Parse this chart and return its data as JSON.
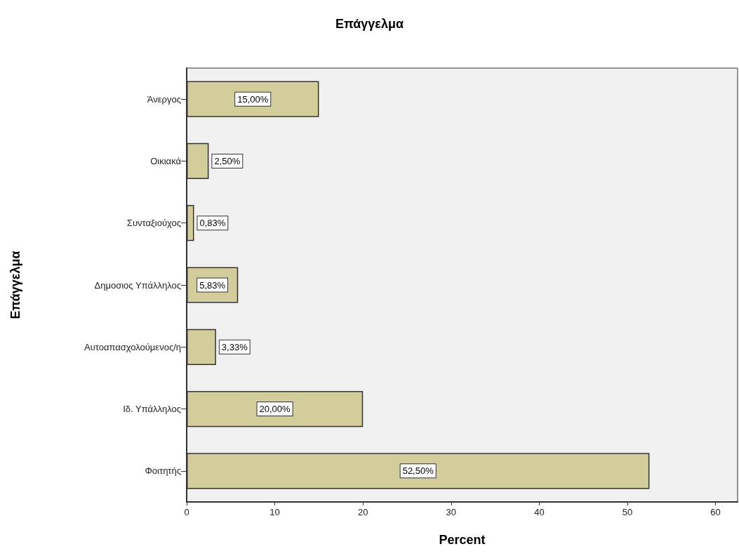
{
  "chart_data": {
    "type": "bar",
    "orientation": "horizontal",
    "title": "Επάγγελμα",
    "xlabel": "Percent",
    "ylabel": "Επάγγελμα",
    "categories": [
      "Άνεργος",
      "Οικιακά",
      "Συνταξιούχος",
      "Δημοσιος Υπάλληλος",
      "Αυτοαπασχολούμενος/η",
      "Ιδ. Υπάλληλος",
      "Φοιτητής"
    ],
    "values": [
      15.0,
      2.5,
      0.83,
      5.83,
      3.33,
      20.0,
      52.5
    ],
    "value_labels": [
      "15,00%",
      "2,50%",
      "0,83%",
      "5,83%",
      "3,33%",
      "20,00%",
      "52,50%"
    ],
    "color": "#d3cd9b",
    "xlim": [
      0,
      62.5
    ],
    "xticks": [
      0,
      10,
      20,
      30,
      40,
      50,
      60
    ],
    "grid": false
  }
}
